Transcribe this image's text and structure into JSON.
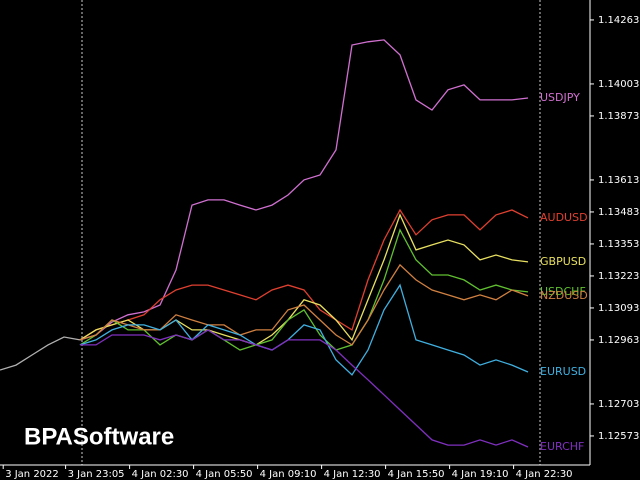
{
  "chart_data": {
    "type": "line",
    "watermark": "BPASoftware",
    "x": [
      5,
      6,
      7,
      8,
      9,
      10,
      11,
      12,
      13,
      14,
      15,
      16,
      17,
      18,
      19,
      20,
      21,
      22,
      23,
      24,
      25,
      26,
      27,
      28,
      29,
      30,
      31,
      32,
      33
    ],
    "xlim": [
      0,
      36.875
    ],
    "xticks": [
      {
        "value": 0.2,
        "label": "3 Jan 2022"
      },
      {
        "value": 4.1,
        "label": "3 Jan 23:05"
      },
      {
        "value": 8.1,
        "label": "4 Jan 02:30"
      },
      {
        "value": 12.1,
        "label": "4 Jan 05:50"
      },
      {
        "value": 16.1,
        "label": "4 Jan 09:10"
      },
      {
        "value": 20.1,
        "label": "4 Jan 12:30"
      },
      {
        "value": 24.1,
        "label": "4 Jan 15:50"
      },
      {
        "value": 28.1,
        "label": "4 Jan 19:10"
      },
      {
        "value": 32.1,
        "label": "4 Jan 22:30"
      }
    ],
    "ylim": [
      1.12455,
      1.14344
    ],
    "yticks": [
      1.14263,
      1.14003,
      1.13873,
      1.13613,
      1.13483,
      1.13353,
      1.13223,
      1.13093,
      1.12963,
      1.12703,
      1.12573
    ],
    "series": [
      {
        "color": "#b0b0b0",
        "x": [
          0,
          1,
          2,
          3,
          4,
          5
        ],
        "values": [
          1.12841,
          1.12861,
          1.12902,
          1.12943,
          1.12975,
          1.12963
        ]
      },
      {
        "name": "USDJPY",
        "color": "#d070d0",
        "values": [
          1.12963,
          1.12983,
          1.13036,
          1.13065,
          1.13077,
          1.13105,
          1.13247,
          1.13511,
          1.13532,
          1.13532,
          1.13511,
          1.13491,
          1.13511,
          1.13552,
          1.13613,
          1.13633,
          1.13735,
          1.14161,
          1.14174,
          1.14182,
          1.14121,
          1.13938,
          1.13897,
          1.13979,
          1.13999,
          1.13938,
          1.13938,
          1.13938,
          1.13946
        ]
      },
      {
        "name": "AUDUSD",
        "color": "#e04030",
        "values": [
          1.12963,
          1.13004,
          1.13024,
          1.13044,
          1.13065,
          1.13126,
          1.13166,
          1.13186,
          1.13186,
          1.13166,
          1.13146,
          1.13126,
          1.13166,
          1.13186,
          1.13166,
          1.13085,
          1.13044,
          1.13004,
          1.13207,
          1.13369,
          1.13491,
          1.1339,
          1.13451,
          1.13471,
          1.13471,
          1.1341,
          1.13471,
          1.13491,
          1.13459
        ]
      },
      {
        "name": "GBPUSD",
        "color": "#e8e060",
        "values": [
          1.12963,
          1.13004,
          1.13024,
          1.13044,
          1.13004,
          1.13004,
          1.13044,
          1.13004,
          1.13004,
          1.12983,
          1.12963,
          1.12943,
          1.12983,
          1.13044,
          1.13126,
          1.13105,
          1.13044,
          1.12963,
          1.13126,
          1.13288,
          1.13471,
          1.13329,
          1.13349,
          1.13369,
          1.13349,
          1.13288,
          1.13308,
          1.13288,
          1.1328
        ]
      },
      {
        "name": "USDCHF",
        "color": "#60c030",
        "values": [
          1.12943,
          1.12983,
          1.13044,
          1.13004,
          1.13004,
          1.12943,
          1.12983,
          1.12963,
          1.13004,
          1.12963,
          1.12922,
          1.12943,
          1.12963,
          1.13044,
          1.13085,
          1.12983,
          1.12922,
          1.12943,
          1.13044,
          1.13207,
          1.1341,
          1.13288,
          1.13227,
          1.13227,
          1.13207,
          1.13166,
          1.13186,
          1.13166,
          1.13158
        ]
      },
      {
        "name": "NZDUSD",
        "color": "#d08040",
        "values": [
          1.12963,
          1.12983,
          1.13044,
          1.13024,
          1.13004,
          1.13004,
          1.13065,
          1.13044,
          1.13024,
          1.13024,
          1.12983,
          1.13004,
          1.13004,
          1.13085,
          1.13105,
          1.13044,
          1.12983,
          1.12943,
          1.13044,
          1.13166,
          1.13268,
          1.13207,
          1.13166,
          1.13146,
          1.13126,
          1.13146,
          1.13126,
          1.13166,
          1.13142
        ]
      },
      {
        "name": "EURUSD",
        "color": "#40b0e0",
        "values": [
          1.12943,
          1.12963,
          1.13004,
          1.13024,
          1.13024,
          1.13004,
          1.13044,
          1.12963,
          1.13024,
          1.13004,
          1.12983,
          1.12943,
          1.12922,
          1.12963,
          1.13024,
          1.13004,
          1.12882,
          1.12821,
          1.12922,
          1.13085,
          1.13186,
          1.12963,
          1.12943,
          1.12922,
          1.12902,
          1.12861,
          1.12882,
          1.12861,
          1.12833
        ]
      },
      {
        "name": "EURCHF",
        "color": "#8030c0",
        "values": [
          1.12943,
          1.12943,
          1.12983,
          1.12983,
          1.12983,
          1.12963,
          1.12983,
          1.12963,
          1.13004,
          1.12963,
          1.12963,
          1.12943,
          1.12922,
          1.12963,
          1.12963,
          1.12963,
          1.12922,
          1.12861,
          1.12801,
          1.1274,
          1.12679,
          1.12618,
          1.12557,
          1.12536,
          1.12536,
          1.12557,
          1.12536,
          1.12557,
          1.12528
        ]
      }
    ]
  }
}
